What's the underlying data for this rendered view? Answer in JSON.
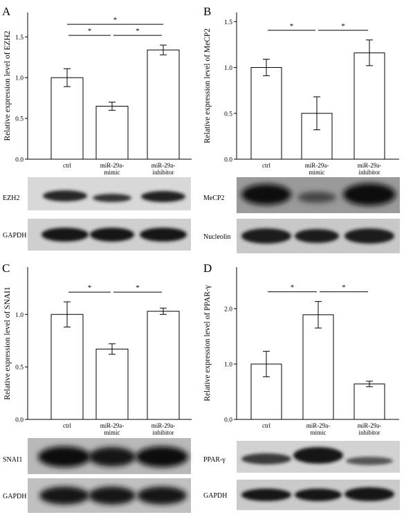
{
  "chart_data": [
    {
      "panel": "A",
      "type": "bar",
      "ylabel": "Relative expression level of EZH2",
      "categories": [
        "ctrl",
        "miR-29a-\nmimic",
        "miR-29a-\ninhibitor"
      ],
      "values": [
        1.0,
        0.65,
        1.34
      ],
      "errors": [
        0.11,
        0.05,
        0.06
      ],
      "ylim": [
        0,
        1.8
      ],
      "yticks": [
        "0.0",
        "0.5",
        "1.0",
        "1.5"
      ],
      "yticks_values": [
        0,
        0.5,
        1.0,
        1.5
      ],
      "significance": [
        {
          "from": 0,
          "to": 1,
          "label": "*"
        },
        {
          "from": 1,
          "to": 2,
          "label": "*"
        },
        {
          "from": 0,
          "to": 2,
          "label": "*"
        }
      ],
      "blots": [
        "EZH2",
        "GAPDH"
      ]
    },
    {
      "panel": "B",
      "type": "bar",
      "ylabel": "Relative expression level of MeCP2",
      "categories": [
        "ctrl",
        "miR-29a-\nmimic",
        "miR-29a-\ninhibitor"
      ],
      "values": [
        1.0,
        0.5,
        1.16
      ],
      "errors": [
        0.09,
        0.18,
        0.14
      ],
      "ylim": [
        0,
        1.6
      ],
      "yticks": [
        "0.0",
        "0.5",
        "1.0",
        "1.5"
      ],
      "yticks_values": [
        0,
        0.5,
        1.0,
        1.5
      ],
      "significance": [
        {
          "from": 0,
          "to": 1,
          "label": "*"
        },
        {
          "from": 1,
          "to": 2,
          "label": "*"
        }
      ],
      "blots": [
        "MeCP2",
        "Nucleolin"
      ]
    },
    {
      "panel": "C",
      "type": "bar",
      "ylabel": "Relative expression level of SNAI1",
      "categories": [
        "ctrl",
        "miR-29a-\nmimic",
        "miR-29a-\ninhibitor"
      ],
      "values": [
        1.0,
        0.67,
        1.03
      ],
      "errors": [
        0.12,
        0.05,
        0.03
      ],
      "ylim": [
        0,
        1.45
      ],
      "yticks": [
        "0.0",
        "0.5",
        "1.0"
      ],
      "yticks_values": [
        0,
        0.5,
        1.0
      ],
      "significance": [
        {
          "from": 0,
          "to": 1,
          "label": "*"
        },
        {
          "from": 1,
          "to": 2,
          "label": "*"
        }
      ],
      "blots": [
        "SNAI1",
        "GAPDH"
      ]
    },
    {
      "panel": "D",
      "type": "bar",
      "ylabel": "Relative expression level of PPAR-γ",
      "categories": [
        "ctrl",
        "miR-29a-\nmimic",
        "miR-29a-\ninhibitor"
      ],
      "values": [
        1.0,
        1.89,
        0.64
      ],
      "errors": [
        0.23,
        0.24,
        0.05
      ],
      "ylim": [
        0,
        2.75
      ],
      "yticks": [
        "0.0",
        "1.0",
        "2.0"
      ],
      "yticks_values": [
        0,
        1.0,
        2.0
      ],
      "significance": [
        {
          "from": 0,
          "to": 1,
          "label": "*"
        },
        {
          "from": 1,
          "to": 2,
          "label": "*"
        }
      ],
      "blots": [
        "PPAR-γ",
        "GAPDH"
      ]
    }
  ]
}
